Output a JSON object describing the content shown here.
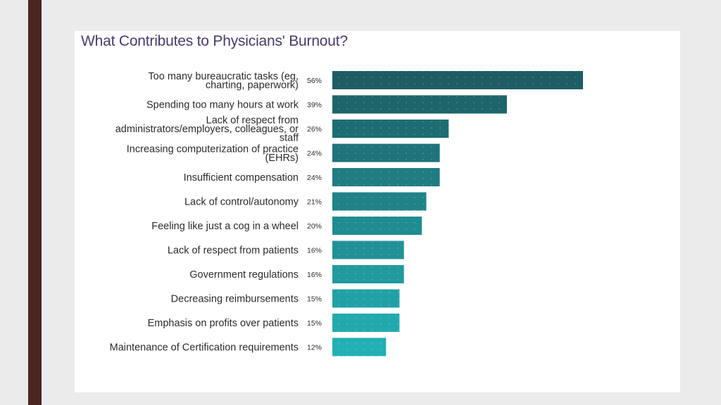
{
  "page": {
    "title": "What Contributes to Physicians' Burnout?"
  },
  "colors": {
    "bar_top": "#1d5e64",
    "bar_bottom": "#22b0b4",
    "title": "#4b3a6b",
    "stripe": "#4a2620"
  },
  "chart_data": {
    "type": "bar",
    "orientation": "horizontal",
    "title": "What Contributes to Physicians' Burnout?",
    "xlabel": "",
    "ylabel": "",
    "xlim": [
      0,
      56
    ],
    "grid": false,
    "legend": "none",
    "categories": [
      [
        "Too many bureaucratic tasks (eg,",
        "charting, paperwork)"
      ],
      [
        "Spending too many hours at work"
      ],
      [
        "Lack of respect from",
        "administrators/employers, colleagues, or",
        "staff"
      ],
      [
        "Increasing computerization of practice",
        "(EHRs)"
      ],
      [
        "Insufficient compensation"
      ],
      [
        "Lack of control/autonomy"
      ],
      [
        "Feeling like just a cog in a wheel"
      ],
      [
        "Lack of respect from patients"
      ],
      [
        "Government regulations"
      ],
      [
        "Decreasing reimbursements"
      ],
      [
        "Emphasis on profits over patients"
      ],
      [
        "Maintenance of Certification requirements"
      ]
    ],
    "values": [
      56,
      39,
      26,
      24,
      24,
      21,
      20,
      16,
      16,
      15,
      15,
      12
    ],
    "value_labels": [
      "56%",
      "39%",
      "26%",
      "24%",
      "24%",
      "21%",
      "20%",
      "16%",
      "16%",
      "15%",
      "15%",
      "12%"
    ]
  }
}
